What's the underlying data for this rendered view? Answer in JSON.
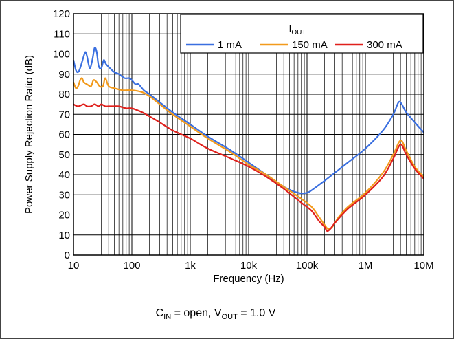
{
  "chart_data": {
    "type": "line",
    "title": "",
    "xlabel": "Frequency (Hz)",
    "ylabel": "Power Supply Rejection Ratio (dB)",
    "x_scale": "log",
    "xlim": [
      10,
      10000000
    ],
    "ylim": [
      0,
      120
    ],
    "x_ticks": [
      10,
      100,
      1000,
      10000,
      100000,
      1000000,
      10000000
    ],
    "x_tick_labels": [
      "10",
      "100",
      "1k",
      "10k",
      "100k",
      "1M",
      "10M"
    ],
    "y_ticks": [
      0,
      10,
      20,
      30,
      40,
      50,
      60,
      70,
      80,
      90,
      100,
      110,
      120
    ],
    "y_tick_labels": [
      "0",
      "10",
      "20",
      "30",
      "40",
      "50",
      "60",
      "70",
      "80",
      "90",
      "100",
      "110",
      "120"
    ],
    "grid": true,
    "legend": {
      "placement": "top-right",
      "title_main": "I",
      "title_sub": "OUT"
    },
    "caption": {
      "p1": "C",
      "p1_sub": "IN",
      "p2": " = open, V",
      "p2_sub": "OUT",
      "p3": " = 1.0 V"
    },
    "series": [
      {
        "name": "1 mA",
        "color": "#3a6fe0",
        "points": [
          [
            10,
            97
          ],
          [
            11,
            92
          ],
          [
            12,
            91
          ],
          [
            13,
            93
          ],
          [
            15,
            99
          ],
          [
            16,
            101
          ],
          [
            17,
            99
          ],
          [
            19,
            93
          ],
          [
            21,
            97
          ],
          [
            23,
            103
          ],
          [
            25,
            101
          ],
          [
            27,
            94
          ],
          [
            30,
            93
          ],
          [
            33,
            97
          ],
          [
            36,
            95
          ],
          [
            42,
            93
          ],
          [
            50,
            91
          ],
          [
            60,
            90
          ],
          [
            75,
            88
          ],
          [
            90,
            88
          ],
          [
            100,
            87
          ],
          [
            115,
            85
          ],
          [
            130,
            85
          ],
          [
            160,
            82
          ],
          [
            200,
            80
          ],
          [
            300,
            76
          ],
          [
            500,
            71
          ],
          [
            1000,
            65
          ],
          [
            2000,
            59
          ],
          [
            5000,
            52
          ],
          [
            10000,
            46
          ],
          [
            20000,
            40
          ],
          [
            40000,
            34
          ],
          [
            70000,
            31
          ],
          [
            100000,
            31
          ],
          [
            130000,
            33
          ],
          [
            200000,
            37
          ],
          [
            300000,
            41
          ],
          [
            500000,
            46
          ],
          [
            1000000,
            53
          ],
          [
            2000000,
            62
          ],
          [
            3000000,
            70
          ],
          [
            3700000,
            76
          ],
          [
            4200000,
            75
          ],
          [
            5000000,
            71
          ],
          [
            7000000,
            66
          ],
          [
            10000000,
            61
          ]
        ]
      },
      {
        "name": "150 mA",
        "color": "#f29a1c",
        "points": [
          [
            10,
            86
          ],
          [
            11,
            83
          ],
          [
            12,
            84
          ],
          [
            13,
            87
          ],
          [
            14,
            88
          ],
          [
            15,
            86
          ],
          [
            17,
            85
          ],
          [
            20,
            84
          ],
          [
            22,
            87
          ],
          [
            25,
            86
          ],
          [
            28,
            84
          ],
          [
            32,
            84
          ],
          [
            35,
            88
          ],
          [
            40,
            84
          ],
          [
            50,
            83
          ],
          [
            70,
            82
          ],
          [
            100,
            82
          ],
          [
            150,
            81
          ],
          [
            200,
            79
          ],
          [
            300,
            75
          ],
          [
            500,
            70
          ],
          [
            1000,
            64
          ],
          [
            2000,
            58
          ],
          [
            5000,
            51
          ],
          [
            10000,
            45
          ],
          [
            20000,
            40
          ],
          [
            40000,
            34
          ],
          [
            80000,
            28
          ],
          [
            120000,
            24
          ],
          [
            160000,
            19
          ],
          [
            200000,
            15
          ],
          [
            230000,
            13
          ],
          [
            270000,
            14
          ],
          [
            350000,
            19
          ],
          [
            500000,
            24
          ],
          [
            1000000,
            31
          ],
          [
            2000000,
            41
          ],
          [
            3000000,
            50
          ],
          [
            4000000,
            57
          ],
          [
            5000000,
            52
          ],
          [
            7000000,
            44
          ],
          [
            10000000,
            39
          ]
        ]
      },
      {
        "name": "300 mA",
        "color": "#e0201c",
        "points": [
          [
            10,
            75
          ],
          [
            12,
            74
          ],
          [
            15,
            75
          ],
          [
            17,
            74
          ],
          [
            20,
            74
          ],
          [
            23,
            75
          ],
          [
            27,
            74
          ],
          [
            30,
            75
          ],
          [
            35,
            74
          ],
          [
            40,
            74
          ],
          [
            50,
            74
          ],
          [
            60,
            74
          ],
          [
            80,
            73
          ],
          [
            100,
            73
          ],
          [
            150,
            71
          ],
          [
            200,
            69
          ],
          [
            300,
            66
          ],
          [
            500,
            62
          ],
          [
            1000,
            58
          ],
          [
            2000,
            53
          ],
          [
            5000,
            48
          ],
          [
            10000,
            44
          ],
          [
            20000,
            39
          ],
          [
            40000,
            33
          ],
          [
            80000,
            26
          ],
          [
            120000,
            22
          ],
          [
            160000,
            17
          ],
          [
            200000,
            14
          ],
          [
            220000,
            12
          ],
          [
            250000,
            13
          ],
          [
            300000,
            16
          ],
          [
            500000,
            23
          ],
          [
            1000000,
            30
          ],
          [
            2000000,
            39
          ],
          [
            3000000,
            48
          ],
          [
            4000000,
            55
          ],
          [
            5000000,
            50
          ],
          [
            7000000,
            43
          ],
          [
            10000000,
            38
          ]
        ]
      }
    ]
  }
}
